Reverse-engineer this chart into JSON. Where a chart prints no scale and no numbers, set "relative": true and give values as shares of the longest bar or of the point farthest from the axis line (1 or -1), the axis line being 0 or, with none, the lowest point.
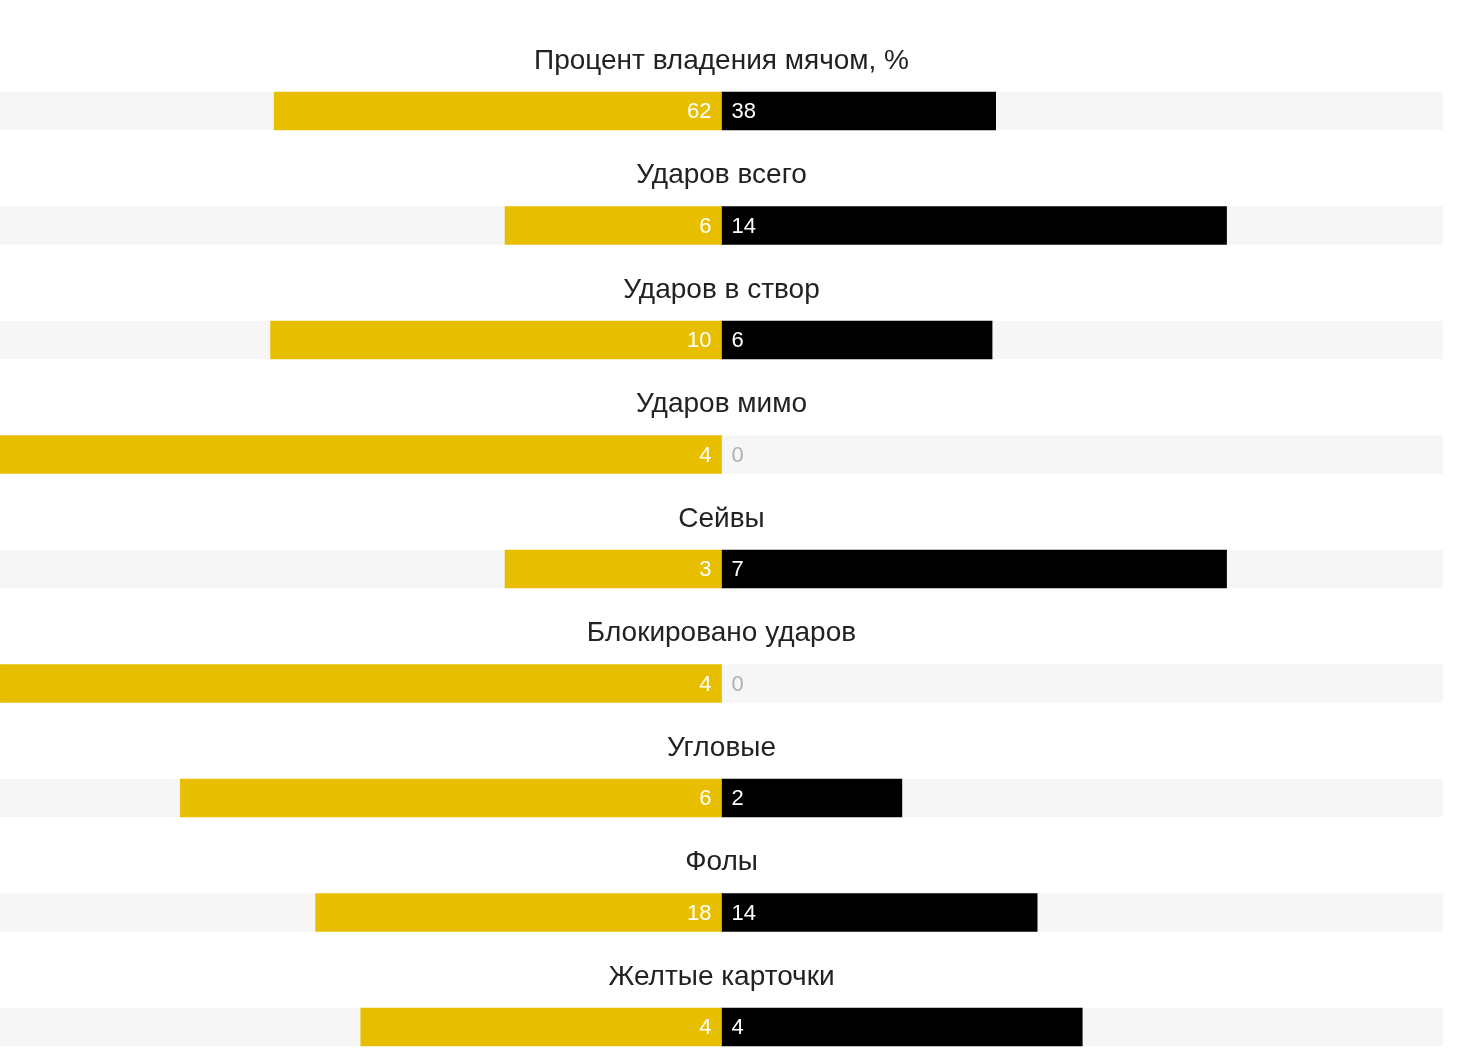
{
  "chart_data": {
    "type": "bar",
    "orientation": "horizontal",
    "stacked": true,
    "relative": true,
    "categories": [
      "Процент владения мячом, %",
      "Ударов всего",
      "Ударов в створ",
      "Ударов мимо",
      "Сейвы",
      "Блокировано ударов",
      "Угловые",
      "Фолы",
      "Желтые карточки"
    ],
    "series": [
      {
        "color": "#e8bf00",
        "values": [
          -0.62,
          -0.3,
          -0.625,
          -1,
          -0.3,
          -1,
          -0.75,
          -0.5625,
          -0.5
        ]
      },
      {
        "color": "#000000",
        "values": [
          0.38,
          0.7,
          0.375,
          0,
          0.7,
          0,
          0.25,
          0.4375,
          0.5
        ]
      }
    ],
    "annotations": [
      "62",
      "38",
      "6",
      "14",
      "10",
      "6",
      "4",
      "0",
      "3",
      "7",
      "4",
      "0",
      "6",
      "2",
      "18",
      "14",
      "4",
      "4"
    ]
  }
}
